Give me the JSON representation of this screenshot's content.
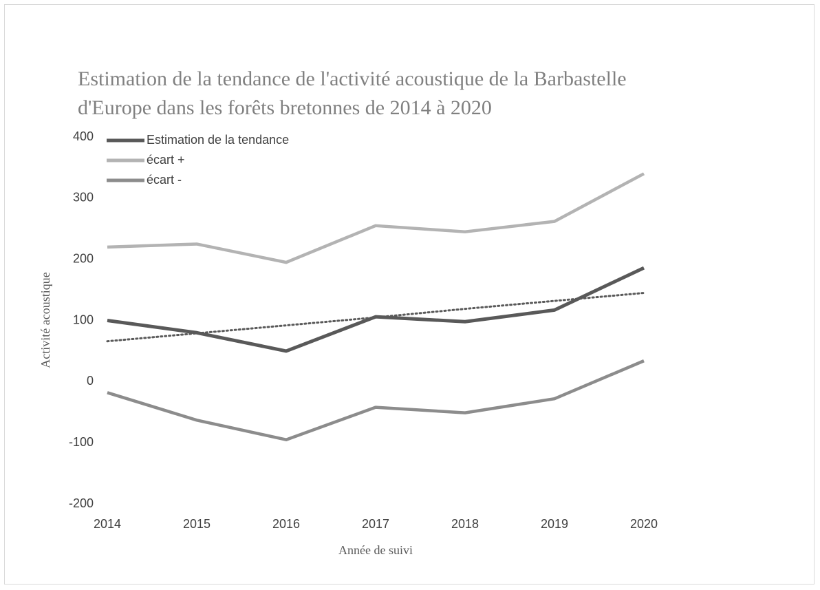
{
  "chart_data": {
    "type": "line",
    "title": "Estimation de la tendance de l'activité acoustique de la Barbastelle d'Europe dans les forêts bretonnes de 2014 à 2020",
    "x_label": "Année de suivi",
    "y_label": "Activité acoustique",
    "categories": [
      "2014",
      "2015",
      "2016",
      "2017",
      "2018",
      "2019",
      "2020"
    ],
    "series": [
      {
        "name": "Estimation de la tendance",
        "color": "#595959",
        "values": [
          100,
          80,
          50,
          106,
          98,
          117,
          186
        ]
      },
      {
        "name": "écart +",
        "color": "#b3b3b3",
        "values": [
          220,
          225,
          195,
          255,
          245,
          262,
          340
        ]
      },
      {
        "name": "écart -",
        "color": "#8c8c8c",
        "values": [
          -18,
          -63,
          -95,
          -42,
          -51,
          -28,
          34
        ]
      }
    ],
    "trendline": {
      "color": "#595959",
      "dashed": true,
      "values": [
        66,
        79,
        92,
        105,
        119,
        132,
        145
      ]
    },
    "ylim": [
      -200,
      400
    ],
    "yticks": [
      -200,
      -100,
      0,
      100,
      200,
      300,
      400
    ],
    "grid": false,
    "legend": "upper left"
  }
}
